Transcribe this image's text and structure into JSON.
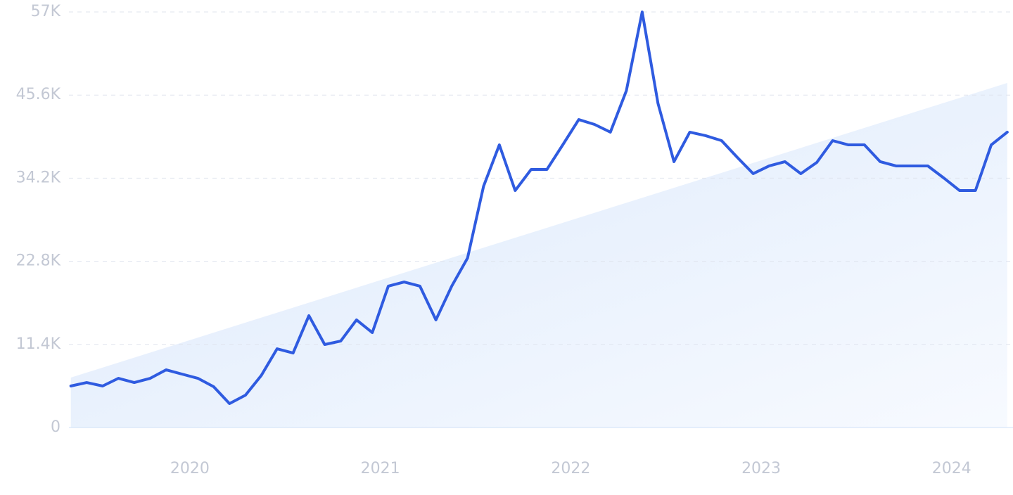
{
  "chart_data": {
    "type": "line",
    "x": [
      2019.375,
      2019.458,
      2019.542,
      2019.625,
      2019.708,
      2019.792,
      2019.875,
      2019.958,
      2020.042,
      2020.125,
      2020.208,
      2020.292,
      2020.375,
      2020.458,
      2020.542,
      2020.625,
      2020.708,
      2020.792,
      2020.875,
      2020.958,
      2021.042,
      2021.125,
      2021.208,
      2021.292,
      2021.375,
      2021.458,
      2021.542,
      2021.625,
      2021.708,
      2021.792,
      2021.875,
      2021.958,
      2022.042,
      2022.125,
      2022.208,
      2022.292,
      2022.375,
      2022.458,
      2022.542,
      2022.625,
      2022.708,
      2022.792,
      2022.875,
      2022.958,
      2023.042,
      2023.125,
      2023.208,
      2023.292,
      2023.375,
      2023.458,
      2023.542,
      2023.625,
      2023.708,
      2023.792,
      2023.875,
      2023.958,
      2024.042,
      2024.125,
      2024.208,
      2024.292
    ],
    "series": [
      {
        "color": "#2f5be0",
        "values": [
          5690,
          6170,
          5690,
          6750,
          6170,
          6750,
          7910,
          7330,
          6750,
          5590,
          3280,
          4440,
          7140,
          10800,
          10220,
          15340,
          11380,
          11860,
          14760,
          13020,
          19390,
          19960,
          19390,
          14760,
          19390,
          23240,
          33080,
          38770,
          32500,
          35400,
          35400,
          38770,
          42240,
          41570,
          40510,
          46200,
          57000,
          44460,
          36460,
          40510,
          40030,
          39350,
          37040,
          34820,
          35880,
          36460,
          34820,
          36360,
          39350,
          38770,
          38770,
          36460,
          35880,
          35880,
          35880,
          34240,
          32500,
          32500,
          38770,
          40510
        ]
      }
    ],
    "trend": {
      "x": [
        2019.375,
        2024.292
      ],
      "values": [
        6850,
        47260
      ],
      "color": "#dce9fb"
    },
    "xlim": [
      2019.365,
      2024.3
    ],
    "xticks": [
      2020,
      2021,
      2022,
      2023,
      2024
    ],
    "ylim": [
      0,
      57000
    ],
    "yticks": [
      0,
      {
        "value": 11400,
        "label": "11.4K"
      },
      {
        "value": 22800,
        "label": "22.8K"
      },
      {
        "value": 34200,
        "label": "34.2K"
      },
      {
        "value": 45600,
        "label": "45.6K"
      },
      {
        "value": 57000,
        "label": "57K"
      }
    ],
    "grid": true
  }
}
